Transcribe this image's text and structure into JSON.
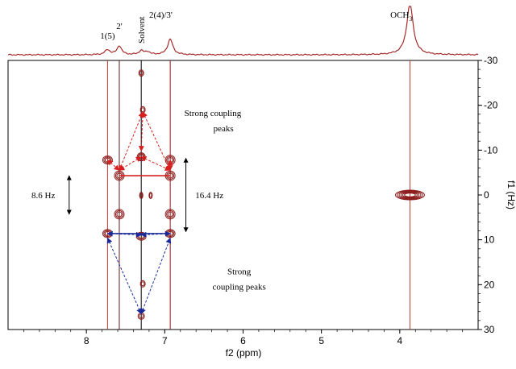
{
  "chart_data": {
    "type": "contour",
    "title": "",
    "xlabel": "f2 (ppm)",
    "ylabel": "f1 (Hz)",
    "xlim": [
      9.0,
      3.0
    ],
    "ylim": [
      -30,
      30
    ],
    "x_ticks": [
      {
        "value": 8,
        "label": "8"
      },
      {
        "value": 7,
        "label": "7"
      },
      {
        "value": 6,
        "label": "6"
      },
      {
        "value": 5,
        "label": "5"
      },
      {
        "value": 4,
        "label": "4"
      }
    ],
    "y_ticks": [
      {
        "value": -30,
        "label": "-30"
      },
      {
        "value": -20,
        "label": "-20"
      },
      {
        "value": -10,
        "label": "-10"
      },
      {
        "value": 0,
        "label": "0"
      },
      {
        "value": 10,
        "label": "10"
      },
      {
        "value": 20,
        "label": "20"
      },
      {
        "value": 30,
        "label": "30"
      }
    ],
    "projection_peaks": [
      {
        "ppm": 7.73,
        "height": 0.1,
        "width": 0.04
      },
      {
        "ppm": 7.58,
        "height": 0.18,
        "width": 0.035
      },
      {
        "ppm": 7.3,
        "height": 0.08,
        "width": 0.035
      },
      {
        "ppm": 7.22,
        "height": 0.06,
        "width": 0.035
      },
      {
        "ppm": 6.93,
        "height": 0.32,
        "width": 0.04
      },
      {
        "ppm": 3.87,
        "height": 1.05,
        "width": 0.05
      }
    ],
    "peak_labels": [
      {
        "text": "1(5)",
        "ppm": 7.73
      },
      {
        "text": "2'",
        "ppm": 7.58
      },
      {
        "text": "Solvent",
        "ppm": 7.3,
        "rotated": true
      },
      {
        "text": "2(4)/3'",
        "ppm": 7.05
      },
      {
        "text": "OCH",
        "sub": "3",
        "ppm": 3.98
      }
    ],
    "vertical_lines": [
      {
        "ppm": 7.73,
        "color": "#c0392b"
      },
      {
        "ppm": 7.58,
        "color": "#5a1a1a"
      },
      {
        "ppm": 7.3,
        "color": "#000000"
      },
      {
        "ppm": 6.93,
        "color": "#8b1a1a"
      },
      {
        "ppm": 3.87,
        "color": "#c0392b"
      }
    ],
    "contour_peaks": [
      {
        "ppm": 7.3,
        "hz": -27.2,
        "rx": 3,
        "ry": 4,
        "n": 2
      },
      {
        "ppm": 7.28,
        "hz": -19.0,
        "rx": 3,
        "ry": 4,
        "n": 2
      },
      {
        "ppm": 7.3,
        "hz": -8.5,
        "rx": 5,
        "ry": 5,
        "n": 3
      },
      {
        "ppm": 7.73,
        "hz": -7.8,
        "rx": 6,
        "ry": 5,
        "n": 3
      },
      {
        "ppm": 6.93,
        "hz": -7.8,
        "rx": 6,
        "ry": 6,
        "n": 3
      },
      {
        "ppm": 7.58,
        "hz": -4.3,
        "rx": 6,
        "ry": 6,
        "n": 3
      },
      {
        "ppm": 6.93,
        "hz": -4.3,
        "rx": 6,
        "ry": 6,
        "n": 3
      },
      {
        "ppm": 7.3,
        "hz": 0.1,
        "rx": 2,
        "ry": 4,
        "n": 2
      },
      {
        "ppm": 7.18,
        "hz": 0.1,
        "rx": 2,
        "ry": 4,
        "n": 2
      },
      {
        "ppm": 7.58,
        "hz": 4.3,
        "rx": 6,
        "ry": 6,
        "n": 3
      },
      {
        "ppm": 6.93,
        "hz": 4.3,
        "rx": 6,
        "ry": 6,
        "n": 3
      },
      {
        "ppm": 7.73,
        "hz": 8.6,
        "rx": 6,
        "ry": 5,
        "n": 3
      },
      {
        "ppm": 6.93,
        "hz": 8.6,
        "rx": 6,
        "ry": 5,
        "n": 3
      },
      {
        "ppm": 7.3,
        "hz": 9.2,
        "rx": 6,
        "ry": 5,
        "n": 3
      },
      {
        "ppm": 7.28,
        "hz": 19.8,
        "rx": 3,
        "ry": 4,
        "n": 2
      },
      {
        "ppm": 7.3,
        "hz": 27.0,
        "rx": 4,
        "ry": 4,
        "n": 2
      },
      {
        "ppm": 3.87,
        "hz": 0.0,
        "rx": 18,
        "ry": 6,
        "n": 6
      }
    ],
    "annotations": [
      {
        "text": "Strong coupling",
        "ppm": 6.75,
        "hz": -17.6,
        "align": "start"
      },
      {
        "text": "peaks",
        "ppm": 6.25,
        "hz": -14.2,
        "align": "middle"
      },
      {
        "text": "Strong",
        "ppm": 6.05,
        "hz": 17.7,
        "align": "middle"
      },
      {
        "text": "coupling peaks",
        "ppm": 6.05,
        "hz": 21.1,
        "align": "middle"
      }
    ],
    "couplings": [
      {
        "label": "8.6 Hz",
        "from_hz": -4.3,
        "to_hz": 4.3,
        "ppm": 8.22,
        "label_ppm": 8.55
      },
      {
        "label": "16.4 Hz",
        "from_hz": -8.2,
        "to_hz": 8.2,
        "ppm": 6.73,
        "label_ppm": 6.43
      }
    ],
    "red_arrows": [
      {
        "from": [
          7.28,
          -18.5
        ],
        "to": [
          7.58,
          -5.5
        ]
      },
      {
        "from": [
          7.28,
          -18.5
        ],
        "to": [
          6.93,
          -5.5
        ]
      },
      {
        "from": [
          7.28,
          -18.5
        ],
        "to": [
          7.3,
          -9.8
        ]
      },
      {
        "from": [
          7.3,
          -8.5
        ],
        "to": [
          7.58,
          -5.5
        ]
      },
      {
        "from": [
          7.3,
          -8.5
        ],
        "to": [
          6.93,
          -5.5
        ]
      },
      {
        "from": [
          7.73,
          -7.8
        ],
        "to": [
          7.58,
          -5.5
        ]
      },
      {
        "from": [
          6.93,
          -7.8
        ],
        "to": [
          6.93,
          -5.5
        ]
      }
    ],
    "blue_arrows": [
      {
        "from": [
          7.3,
          26.5
        ],
        "to": [
          7.73,
          9.6
        ]
      },
      {
        "from": [
          7.3,
          26.5
        ],
        "to": [
          6.93,
          9.6
        ]
      },
      {
        "from": [
          7.73,
          8.6
        ],
        "to": [
          7.3,
          8.9
        ]
      },
      {
        "from": [
          6.93,
          8.6
        ],
        "to": [
          7.3,
          8.9
        ]
      }
    ],
    "red_bar": {
      "hz": -4.3,
      "from_ppm": 7.58,
      "to_ppm": 6.93
    },
    "blue_bar": {
      "hz": 8.6,
      "from_ppm": 7.73,
      "to_ppm": 6.93
    },
    "colors": {
      "spectrum": "#a52a2a",
      "contour": "#8b1a1a",
      "red": "#d62020",
      "blue": "#1a2a9c"
    }
  }
}
